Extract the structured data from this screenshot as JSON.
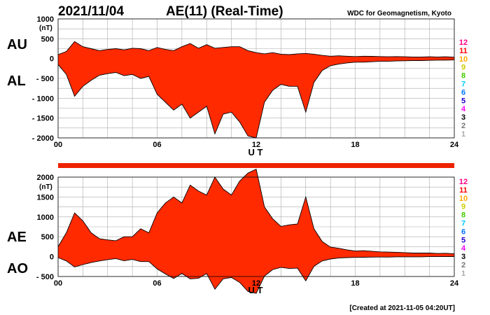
{
  "header": {
    "date": "2021/11/04",
    "title": "AE(11) (Real-Time)",
    "source": "WDC for Geomagnetism, Kyoto",
    "created": "[Created at 2021-11-05 04:20UT]"
  },
  "colors": {
    "fill": "#ff2a00",
    "outline": "#000000",
    "coverage_bar": "#ee2200",
    "levels": [
      "#aaaaaa",
      "#777777",
      "#000000",
      "#ff00ff",
      "#2200cc",
      "#0077ff",
      "#00ccff",
      "#44cc00",
      "#cccc00",
      "#ffaa00",
      "#ff0000",
      "#ff0088"
    ]
  },
  "legend_levels": [
    "1",
    "2",
    "3",
    "4",
    "5",
    "6",
    "7",
    "8",
    "9",
    "10",
    "11",
    "12"
  ],
  "chart_data": [
    {
      "type": "area",
      "panel": "AU/AL",
      "labels": {
        "upper": "AU",
        "lower": "AL"
      },
      "unit": "(nT)",
      "xlabel": "U T",
      "xlim": [
        0,
        24
      ],
      "ylim": [
        -2000,
        1000
      ],
      "x_ticks": [
        "00",
        "06",
        "12",
        "18",
        "24"
      ],
      "y_ticks": [
        "1000",
        "500",
        "0",
        "- 500",
        "- 1000",
        "- 1500",
        "- 2000"
      ],
      "y_tick_values": [
        1000,
        500,
        0,
        -500,
        -1000,
        -1500,
        -2000
      ],
      "series": [
        {
          "name": "AU",
          "x": [
            0,
            0.5,
            1,
            1.5,
            2,
            2.5,
            3,
            3.5,
            4,
            4.5,
            5,
            5.5,
            6,
            6.5,
            7,
            7.5,
            8,
            8.5,
            9,
            9.5,
            10,
            10.5,
            11,
            11.5,
            12,
            12.5,
            13,
            13.5,
            14,
            14.5,
            15,
            15.5,
            16,
            16.5,
            17,
            17.5,
            18,
            18.5,
            19,
            19.5,
            20,
            20.5,
            21,
            21.5,
            22,
            22.5,
            23,
            23.5,
            24
          ],
          "y": [
            100,
            180,
            430,
            300,
            250,
            200,
            230,
            250,
            220,
            260,
            250,
            200,
            280,
            230,
            200,
            300,
            380,
            260,
            350,
            260,
            280,
            300,
            300,
            200,
            150,
            120,
            150,
            110,
            100,
            120,
            130,
            110,
            80,
            60,
            70,
            60,
            50,
            60,
            55,
            50,
            45,
            50,
            45,
            40,
            40,
            45,
            40,
            45,
            35
          ]
        },
        {
          "name": "AL",
          "x": [
            0,
            0.5,
            1,
            1.5,
            2,
            2.5,
            3,
            3.5,
            4,
            4.5,
            5,
            5.5,
            6,
            6.5,
            7,
            7.5,
            8,
            8.5,
            9,
            9.5,
            10,
            10.5,
            11,
            11.5,
            12,
            12.5,
            13,
            13.5,
            14,
            14.5,
            15,
            15.5,
            16,
            16.5,
            17,
            17.5,
            18,
            18.5,
            19,
            19.5,
            20,
            20.5,
            21,
            21.5,
            22,
            22.5,
            23,
            23.5,
            24
          ],
          "y": [
            -150,
            -400,
            -950,
            -700,
            -550,
            -420,
            -380,
            -350,
            -430,
            -400,
            -500,
            -450,
            -900,
            -1100,
            -1300,
            -1150,
            -1500,
            -1350,
            -1200,
            -1900,
            -1400,
            -1350,
            -1600,
            -1950,
            -2000,
            -1100,
            -800,
            -650,
            -700,
            -700,
            -1350,
            -600,
            -300,
            -180,
            -140,
            -110,
            -90,
            -90,
            -80,
            -70,
            -70,
            -60,
            -55,
            -50,
            -50,
            -45,
            -40,
            -40,
            -35
          ]
        }
      ]
    },
    {
      "type": "area",
      "panel": "AE/AO",
      "labels": {
        "upper": "AE",
        "lower": "AO"
      },
      "unit": "(nT)",
      "xlabel": "U T",
      "xlim": [
        0,
        24
      ],
      "ylim": [
        -500,
        2000
      ],
      "x_ticks": [
        "00",
        "06",
        "12",
        "18",
        "24"
      ],
      "y_ticks": [
        "2000",
        "1500",
        "1000",
        "500",
        "0",
        "- 500"
      ],
      "y_tick_values": [
        2000,
        1500,
        1000,
        500,
        0,
        -500
      ],
      "series": [
        {
          "name": "AE",
          "x": [
            0,
            0.5,
            1,
            1.5,
            2,
            2.5,
            3,
            3.5,
            4,
            4.5,
            5,
            5.5,
            6,
            6.5,
            7,
            7.5,
            8,
            8.5,
            9,
            9.5,
            10,
            10.5,
            11,
            11.5,
            12,
            12.5,
            13,
            13.5,
            14,
            14.5,
            15,
            15.5,
            16,
            16.5,
            17,
            17.5,
            18,
            18.5,
            19,
            19.5,
            20,
            20.5,
            21,
            21.5,
            22,
            22.5,
            23,
            23.5,
            24
          ],
          "y": [
            250,
            600,
            1100,
            900,
            600,
            450,
            420,
            400,
            500,
            500,
            700,
            600,
            1100,
            1350,
            1500,
            1350,
            1800,
            1650,
            1550,
            2000,
            1700,
            1550,
            1900,
            2100,
            2200,
            1250,
            950,
            760,
            800,
            820,
            1500,
            700,
            380,
            240,
            210,
            170,
            140,
            150,
            135,
            120,
            115,
            110,
            100,
            90,
            90,
            90,
            80,
            85,
            70
          ]
        },
        {
          "name": "AO",
          "x": [
            0,
            0.5,
            1,
            1.5,
            2,
            2.5,
            3,
            3.5,
            4,
            4.5,
            5,
            5.5,
            6,
            6.5,
            7,
            7.5,
            8,
            8.5,
            9,
            9.5,
            10,
            10.5,
            11,
            11.5,
            12,
            12.5,
            13,
            13.5,
            14,
            14.5,
            15,
            15.5,
            16,
            16.5,
            17,
            17.5,
            18,
            18.5,
            19,
            19.5,
            20,
            20.5,
            21,
            21.5,
            22,
            22.5,
            23,
            23.5,
            24
          ],
          "y": [
            -25,
            -110,
            -260,
            -200,
            -150,
            -110,
            -75,
            -50,
            -105,
            -70,
            -125,
            -125,
            -310,
            -435,
            -550,
            -425,
            -560,
            -545,
            -425,
            -820,
            -560,
            -525,
            -650,
            -875,
            -925,
            -490,
            -325,
            -270,
            -300,
            -290,
            -610,
            -245,
            -110,
            -60,
            -35,
            -25,
            -20,
            -15,
            -12,
            -10,
            -12,
            -5,
            -5,
            -5,
            -5,
            0,
            0,
            2,
            0
          ]
        }
      ]
    }
  ]
}
